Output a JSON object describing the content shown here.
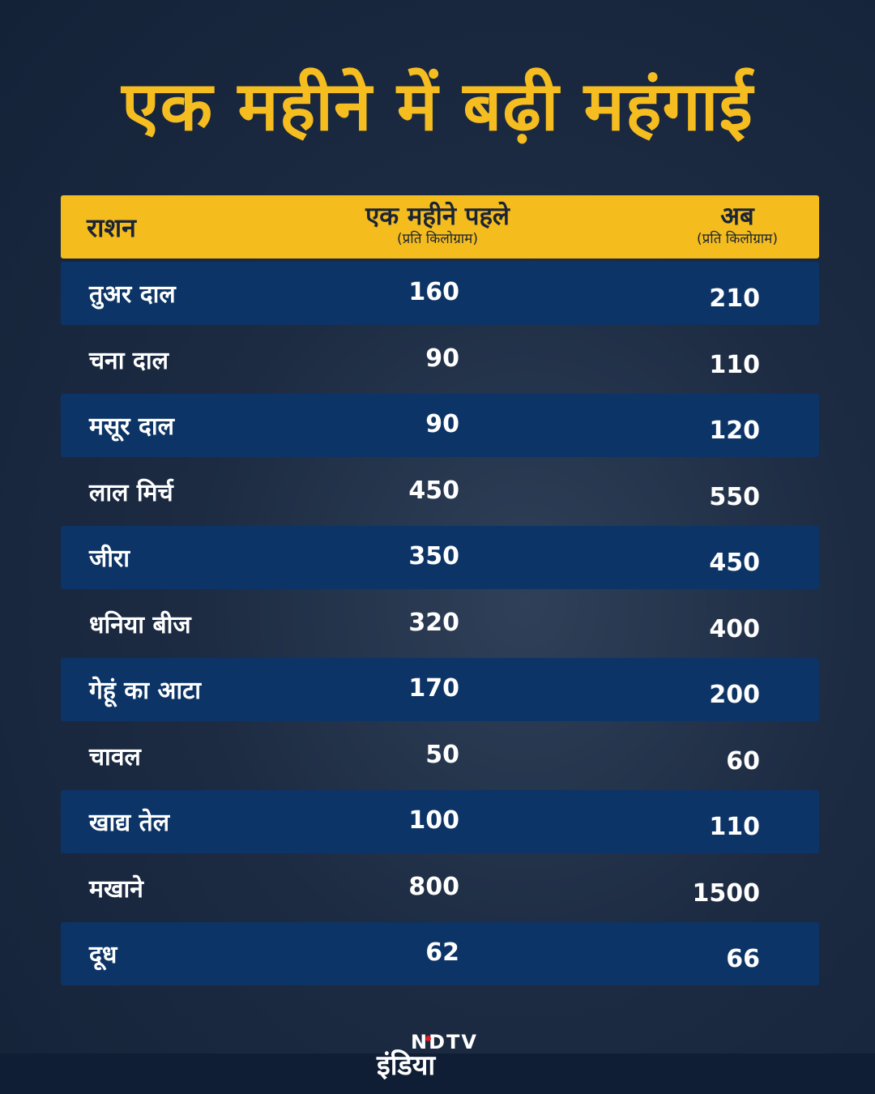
{
  "title": "एक महीने में बढ़ी महंगाई",
  "colors": {
    "accent": "#f4bc1c",
    "row_band": "#0c3466",
    "background": "#1c2b42"
  },
  "chart_data": {
    "type": "table",
    "columns": [
      {
        "label": "राशन"
      },
      {
        "label": "एक महीने पहले",
        "unit": "(प्रति किलोग्राम)"
      },
      {
        "label": "अब",
        "unit": "(प्रति किलोग्राम)"
      }
    ],
    "rows": [
      {
        "item": "तुअर दाल",
        "before": 160,
        "now": 210
      },
      {
        "item": "चना दाल",
        "before": 90,
        "now": 110
      },
      {
        "item": "मसूर दाल",
        "before": 90,
        "now": 120
      },
      {
        "item": "लाल मिर्च",
        "before": 450,
        "now": 550
      },
      {
        "item": "जीरा",
        "before": 350,
        "now": 450
      },
      {
        "item": "धनिया बीज",
        "before": 320,
        "now": 400
      },
      {
        "item": "गेहूं का आटा",
        "before": 170,
        "now": 200
      },
      {
        "item": "चावल",
        "before": 50,
        "now": 60
      },
      {
        "item": "खाद्य तेल",
        "before": 100,
        "now": 110
      },
      {
        "item": "मखाने",
        "before": 800,
        "now": 1500
      },
      {
        "item": "दूध",
        "before": 62,
        "now": 66
      }
    ]
  },
  "logo": {
    "ndtv": "NDTV",
    "india": "इंडिया"
  }
}
